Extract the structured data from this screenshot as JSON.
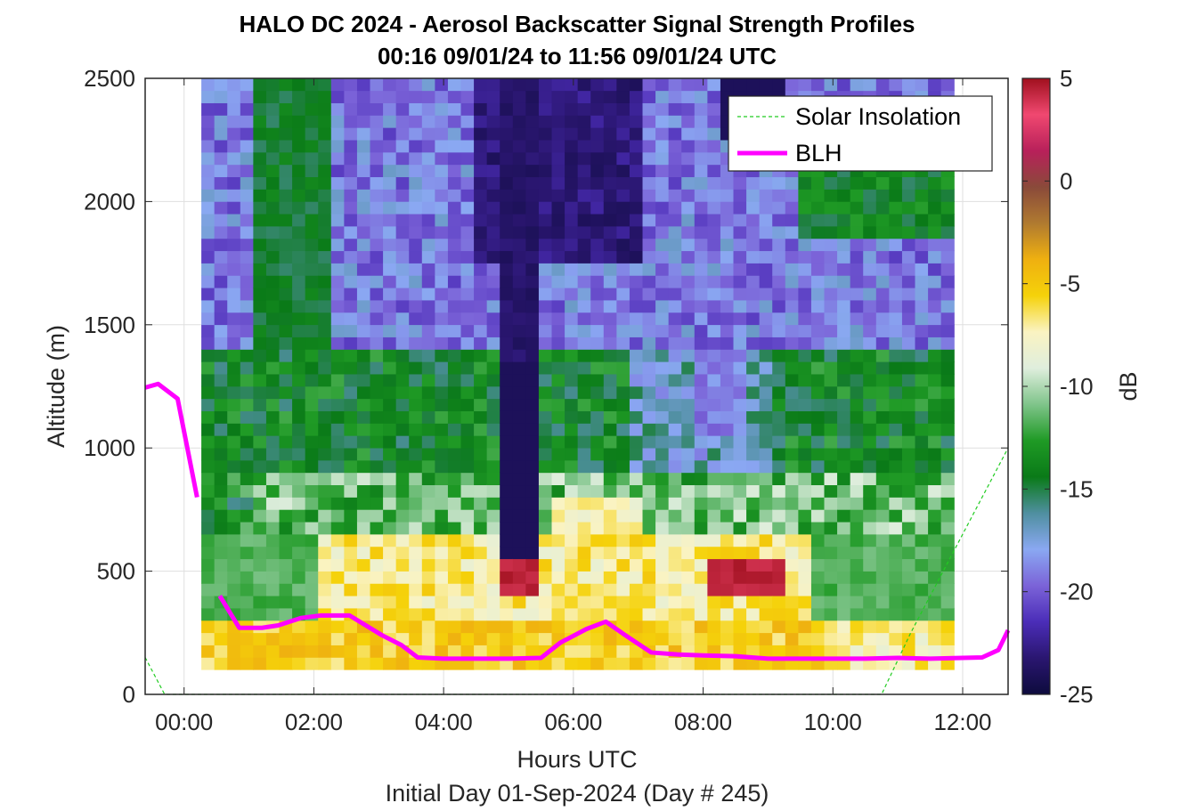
{
  "chart_data": {
    "type": "heatmap",
    "title": "HALO DC 2024 - Aerosol Backscatter Signal Strength Profiles",
    "subtitle": "00:16 09/01/24 to 11:56 09/01/24  UTC",
    "xlabel": "Hours UTC",
    "xlabel2": "Initial Day 01-Sep-2024 (Day # 245)",
    "ylabel": "Altitude (m)",
    "xlim": [
      -0.6,
      12.7
    ],
    "ylim": [
      0,
      2500
    ],
    "x_ticks": [
      0,
      2,
      4,
      6,
      8,
      10,
      12
    ],
    "x_tick_labels": [
      "00:00",
      "02:00",
      "04:00",
      "06:00",
      "08:00",
      "10:00",
      "12:00"
    ],
    "y_ticks": [
      0,
      500,
      1000,
      1500,
      2000,
      2500
    ],
    "y_tick_labels": [
      "0",
      "500",
      "1000",
      "1500",
      "2000",
      "2500"
    ],
    "grid": true,
    "colorbar": {
      "label": "dB",
      "range": [
        -25,
        5
      ],
      "ticks": [
        5,
        0,
        -5,
        -10,
        -15,
        -20,
        -25
      ],
      "tick_labels": [
        "5",
        "0",
        "-5",
        "-10",
        "-15",
        "-20",
        "-25"
      ],
      "colors": [
        "#0d0b3d",
        "#2a1670",
        "#4b2db8",
        "#7b63d8",
        "#8aa8f2",
        "#4f8fa0",
        "#0a7a18",
        "#1f9a25",
        "#7fc48a",
        "#dfeedd",
        "#faf3c2",
        "#f5d20a",
        "#efb010",
        "#b07a30",
        "#8a4a3a",
        "#b8205a",
        "#f04870",
        "#a0101e"
      ]
    },
    "heatmap": {
      "x_start": 0.27,
      "x_step": 0.2,
      "time_bins": 60,
      "alt_start": 100,
      "alt_step": 50,
      "alt_bins": 48,
      "cell_values_note": "signal strength in dB per time/altitude cell"
    },
    "legend": {
      "placement": "top-right"
    },
    "series": [
      {
        "name": "Solar Insolation",
        "style": "dashed",
        "color": "#22cc22",
        "x": [
          -0.6,
          -0.3,
          0.3,
          2,
          4,
          6,
          8,
          10,
          10.75,
          11.2,
          11.7,
          12.2,
          12.7
        ],
        "y": [
          150,
          0,
          0,
          0,
          0,
          0,
          0,
          0,
          0,
          250,
          500,
          750,
          1000
        ]
      },
      {
        "name": "BLH",
        "style": "solid",
        "color": "#ff00ff",
        "segments": [
          {
            "x": [
              -0.6,
              -0.4,
              -0.1,
              0.2
            ],
            "y": [
              1245,
              1260,
              1200,
              800
            ]
          },
          {
            "x": [
              0.55,
              0.85,
              1.2,
              1.45,
              1.8,
              2.1,
              2.55,
              3.05,
              3.35,
              3.6,
              4.0,
              4.5,
              5.0,
              5.5,
              5.8,
              6.2,
              6.5,
              6.8,
              7.2,
              7.6,
              8.0,
              8.5,
              9.0,
              9.5,
              10.0,
              10.5,
              11.0,
              11.5,
              12.0,
              12.3,
              12.55,
              12.7
            ],
            "y": [
              400,
              270,
              270,
              280,
              310,
              320,
              320,
              240,
              200,
              150,
              145,
              145,
              145,
              148,
              210,
              265,
              295,
              240,
              170,
              162,
              158,
              155,
              145,
              145,
              145,
              145,
              148,
              145,
              148,
              150,
              180,
              260
            ]
          }
        ]
      }
    ]
  }
}
